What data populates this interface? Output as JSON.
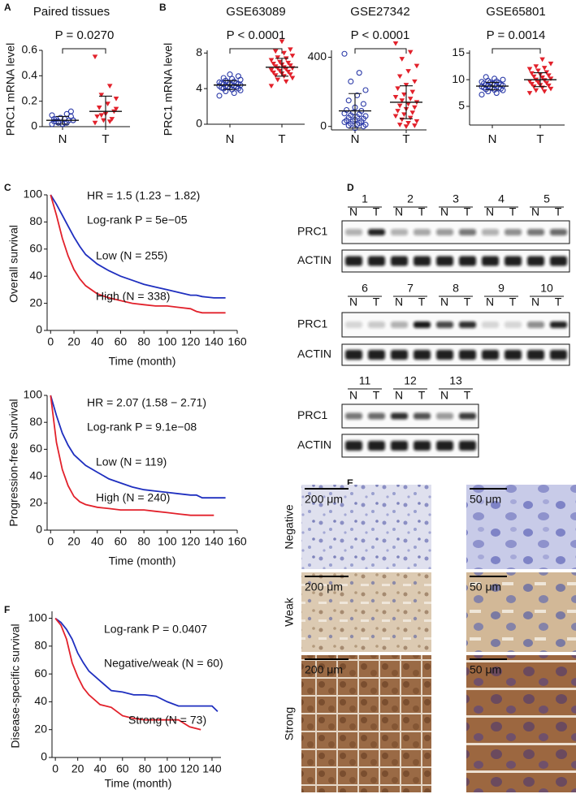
{
  "panels": [
    "A",
    "B",
    "C",
    "D",
    "E",
    "F"
  ],
  "chart_data": [
    {
      "type": "dot",
      "title": "Paired tissues",
      "ylabel": "PRC1 mRNA level",
      "annotation": "P = 0.0270",
      "categories": [
        "N",
        "T"
      ],
      "colors": [
        "#2b3aa8",
        "#e2212b"
      ],
      "markers": [
        "circle-open",
        "triangle-filled"
      ],
      "values": [
        [
          0.02,
          0.03,
          0.04,
          0.05,
          0.03,
          0.06,
          0.08,
          0.02,
          0.04,
          0.05,
          0.07,
          0.09,
          0.1,
          0.03,
          0.05,
          0.06,
          0.04,
          0.12,
          0.02,
          0.06
        ],
        [
          0.55,
          0.32,
          0.25,
          0.22,
          0.18,
          0.15,
          0.12,
          0.1,
          0.08,
          0.06,
          0.05,
          0.03,
          0.04,
          0.09,
          0.14
        ]
      ],
      "mean": [
        0.05,
        0.12
      ],
      "error": [
        0.03,
        0.12
      ],
      "ylim": [
        0,
        0.6
      ],
      "yticks": [
        0,
        0.2,
        0.4,
        0.6
      ]
    },
    {
      "type": "dot",
      "title": "GSE63089",
      "ylabel": "PRC1 mRNA level",
      "annotation": "P < 0.0001",
      "categories": [
        "N",
        "T"
      ],
      "colors": [
        "#2b3aa8",
        "#e2212b"
      ],
      "markers": [
        "circle-open",
        "triangle-filled"
      ],
      "values": [
        [
          3.2,
          3.5,
          3.7,
          3.8,
          3.9,
          4.0,
          4.0,
          4.1,
          4.1,
          4.2,
          4.2,
          4.3,
          4.3,
          4.3,
          4.4,
          4.4,
          4.5,
          4.5,
          4.5,
          4.6,
          4.6,
          4.7,
          4.7,
          4.8,
          4.9,
          5.0,
          5.1,
          5.2,
          5.4,
          5.6
        ],
        [
          4.3,
          4.8,
          5.0,
          5.2,
          5.4,
          5.5,
          5.6,
          5.7,
          5.8,
          5.9,
          6.0,
          6.1,
          6.2,
          6.3,
          6.3,
          6.4,
          6.5,
          6.6,
          6.7,
          6.8,
          6.9,
          7.0,
          7.2,
          7.4,
          7.5,
          7.7,
          8.0,
          8.2,
          8.4,
          9.3
        ]
      ],
      "mean": [
        4.4,
        6.4
      ],
      "error": [
        0.5,
        1.0
      ],
      "ylim": [
        0,
        8.3
      ],
      "yticks": [
        0,
        4,
        8
      ]
    },
    {
      "type": "dot",
      "title": "GSE27342",
      "annotation": "P < 0.0001",
      "categories": [
        "N",
        "T"
      ],
      "colors": [
        "#2b3aa8",
        "#e2212b"
      ],
      "markers": [
        "circle-open",
        "triangle-filled"
      ],
      "values": [
        [
          420,
          310,
          260,
          210,
          180,
          150,
          130,
          110,
          95,
          90,
          80,
          75,
          70,
          65,
          60,
          55,
          50,
          45,
          40,
          35,
          30,
          30,
          25,
          20,
          15,
          10,
          10,
          5,
          0,
          -10
        ],
        [
          480,
          430,
          390,
          350,
          320,
          290,
          260,
          240,
          220,
          200,
          185,
          170,
          160,
          150,
          140,
          130,
          120,
          110,
          100,
          90,
          80,
          70,
          60,
          50,
          40,
          30,
          20,
          10,
          5,
          0
        ]
      ],
      "mean": [
        90,
        140
      ],
      "error": [
        100,
        95
      ],
      "ylim": [
        -20,
        440
      ],
      "yticks": [
        0,
        400
      ]
    },
    {
      "type": "dot",
      "title": "GSE65801",
      "annotation": "P = 0.0014",
      "categories": [
        "N",
        "T"
      ],
      "colors": [
        "#2b3aa8",
        "#e2212b"
      ],
      "markers": [
        "circle-open",
        "triangle-filled"
      ],
      "values": [
        [
          7.2,
          7.5,
          7.8,
          8.0,
          8.1,
          8.2,
          8.3,
          8.4,
          8.5,
          8.5,
          8.6,
          8.7,
          8.8,
          8.8,
          8.9,
          9.0,
          9.0,
          9.1,
          9.2,
          9.3,
          9.4,
          9.5,
          9.6,
          9.7,
          9.8,
          10.0,
          10.2,
          10.5
        ],
        [
          7.5,
          7.8,
          8.0,
          8.3,
          8.5,
          8.7,
          8.9,
          9.0,
          9.2,
          9.4,
          9.5,
          9.7,
          9.9,
          10.0,
          10.2,
          10.4,
          10.6,
          10.8,
          11.0,
          11.2,
          11.4,
          11.7,
          12.0,
          12.2,
          12.5,
          13.0,
          13.8
        ]
      ],
      "mean": [
        8.8,
        10.0
      ],
      "error": [
        0.7,
        1.3
      ],
      "ylim": [
        1.5,
        15.5
      ],
      "yticks": [
        5,
        10,
        15
      ]
    },
    {
      "type": "km",
      "ylabel": "Overall survival",
      "xlabel": "Time (month)",
      "annotations": [
        "HR = 1.5 (1.23 − 1.82)",
        "Log-rank P = 5e−05"
      ],
      "x": [
        0,
        5,
        10,
        15,
        20,
        25,
        30,
        40,
        50,
        60,
        70,
        80,
        90,
        100,
        110,
        120,
        125,
        130,
        140,
        150
      ],
      "series": [
        {
          "name": "Low (N = 255)",
          "color": "#1f2fbf",
          "values": [
            100,
            93,
            85,
            77,
            69,
            62,
            56,
            49,
            44,
            40,
            37,
            34,
            32,
            30,
            28,
            26,
            26,
            25,
            24,
            24
          ]
        },
        {
          "name": "High (N = 338)",
          "color": "#e2212b",
          "values": [
            100,
            85,
            68,
            55,
            45,
            38,
            33,
            27,
            24,
            22,
            20,
            19,
            18,
            18,
            17,
            16,
            14,
            13,
            13,
            13
          ]
        }
      ],
      "xlim": [
        -3,
        160
      ],
      "ylim": [
        0,
        100
      ],
      "xticks": [
        0,
        20,
        40,
        60,
        80,
        100,
        120,
        140,
        160
      ],
      "yticks": [
        0,
        20,
        40,
        60,
        80,
        100
      ]
    },
    {
      "type": "km",
      "ylabel": "Progression-free Survival",
      "xlabel": "Time (month)",
      "annotations": [
        "HR = 2.07 (1.58 − 2.71)",
        "Log-rank P = 9.1e−08"
      ],
      "x": [
        0,
        5,
        10,
        15,
        20,
        25,
        30,
        40,
        50,
        60,
        70,
        80,
        90,
        100,
        110,
        120,
        125,
        130,
        140,
        150
      ],
      "series": [
        {
          "name": "Low (N = 119)",
          "color": "#1f2fbf",
          "values": [
            100,
            85,
            72,
            63,
            56,
            52,
            48,
            43,
            38,
            35,
            32,
            30,
            29,
            28,
            27,
            26,
            26,
            24,
            24,
            24
          ]
        },
        {
          "name": "High (N = 240)",
          "color": "#e2212b",
          "values": [
            100,
            65,
            45,
            33,
            25,
            21,
            19,
            17,
            16,
            15,
            15,
            15,
            14,
            13,
            12,
            11,
            11,
            11,
            11,
            null
          ]
        }
      ],
      "xlim": [
        -3,
        160
      ],
      "ylim": [
        0,
        100
      ],
      "xticks": [
        0,
        20,
        40,
        60,
        80,
        100,
        120,
        140,
        160
      ],
      "yticks": [
        0,
        20,
        40,
        60,
        80,
        100
      ]
    },
    {
      "type": "km",
      "ylabel": "Disease-specific survival",
      "xlabel": "Time (month)",
      "annotations": [
        "Log-rank P = 0.0407"
      ],
      "x": [
        0,
        5,
        10,
        15,
        20,
        25,
        30,
        40,
        50,
        60,
        70,
        80,
        90,
        100,
        110,
        120,
        130,
        140,
        145
      ],
      "series": [
        {
          "name": "Negative/weak (N = 60)",
          "color": "#1f2fbf",
          "values": [
            100,
            97,
            92,
            85,
            75,
            68,
            62,
            55,
            48,
            47,
            45,
            45,
            44,
            40,
            37,
            37,
            37,
            37,
            33
          ]
        },
        {
          "name": "Strong (N = 73)",
          "color": "#e2212b",
          "values": [
            100,
            95,
            85,
            68,
            58,
            50,
            45,
            38,
            36,
            30,
            28,
            27,
            27,
            27,
            27,
            22,
            20,
            null,
            null
          ]
        }
      ],
      "xlim": [
        -3,
        148
      ],
      "ylim": [
        0,
        105
      ],
      "xticks": [
        0,
        20,
        40,
        60,
        80,
        100,
        120,
        140
      ],
      "yticks": [
        0,
        20,
        40,
        60,
        80,
        100
      ]
    }
  ],
  "blots": {
    "lane_labels": [
      "N",
      "T"
    ],
    "proteins": [
      "PRC1",
      "ACTIN"
    ],
    "groups": [
      {
        "lanes": [
          1,
          2,
          3,
          4,
          5
        ]
      },
      {
        "lanes": [
          6,
          7,
          8,
          9,
          10
        ]
      },
      {
        "lanes": [
          11,
          12,
          13
        ]
      }
    ]
  },
  "ihc": {
    "rows": [
      "Negative",
      "Weak",
      "Strong"
    ],
    "scale_bars": [
      "200 μm",
      "50 μm"
    ]
  }
}
